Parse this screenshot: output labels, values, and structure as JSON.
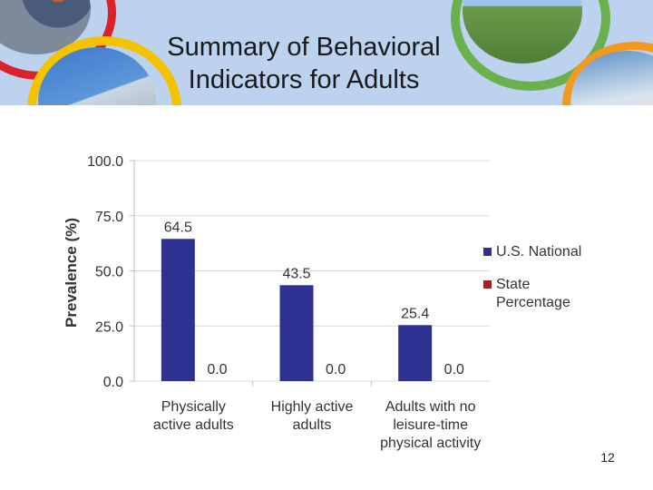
{
  "slide": {
    "title_lines": [
      "Summary of Behavioral",
      "Indicators for Adults"
    ],
    "page_number": "12"
  },
  "colors": {
    "header_bg": "#bcd2ef",
    "us_national": "#2e3192",
    "state": "#c0141b",
    "grid": "#d9d9d9"
  },
  "chart_data": {
    "type": "bar",
    "categories": [
      [
        "Physically",
        "active adults"
      ],
      [
        "Highly active",
        "adults"
      ],
      [
        "Adults with no",
        "leisure-time",
        "physical activity"
      ]
    ],
    "series": [
      {
        "name": "U.S. National",
        "values": [
          64.5,
          43.5,
          25.4
        ],
        "labels": [
          "64.5",
          "43.5",
          "25.4"
        ]
      },
      {
        "name": "State Percentage",
        "values": [
          0.0,
          0.0,
          0.0
        ],
        "labels": [
          "0.0",
          "0.0",
          "0.0"
        ]
      }
    ],
    "legend_lines": [
      [
        "U.S. National"
      ],
      [
        "State",
        "Percentage"
      ]
    ],
    "ylabel": "Prevalence (%)",
    "ylim": [
      0,
      100
    ],
    "yticks": [
      "0.0",
      "25.0",
      "50.0",
      "75.0",
      "100.0"
    ],
    "grid": true,
    "legend_position": "right"
  }
}
